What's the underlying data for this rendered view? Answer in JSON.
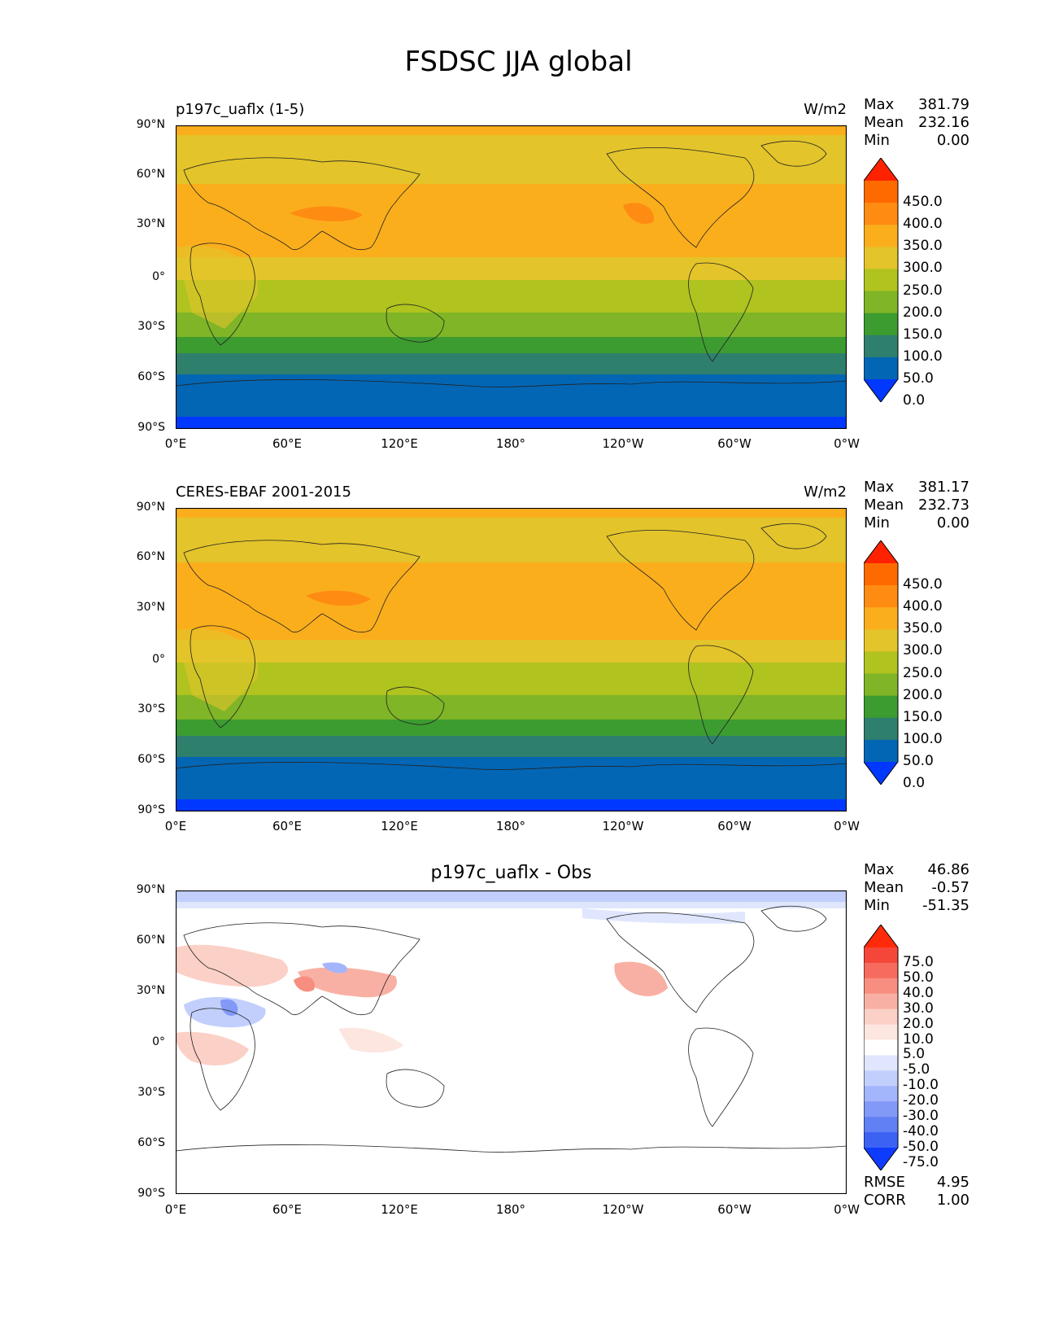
{
  "title": "FSDSC JJA global",
  "x_ticks": [
    "0°E",
    "60°E",
    "120°E",
    "180°",
    "120°W",
    "60°W",
    "0°W"
  ],
  "y_ticks": [
    "90°N",
    "60°N",
    "30°N",
    "0°",
    "30°S",
    "60°S",
    "90°S"
  ],
  "panels": [
    {
      "left_title": "p197c_uaflx (1-5)",
      "units": "W/m2",
      "stats": {
        "max_label": "Max",
        "max": "381.79",
        "mean_label": "Mean",
        "mean": "232.16",
        "min_label": "Min",
        "min": "0.00"
      },
      "colorbar_labels": [
        "450.0",
        "400.0",
        "350.0",
        "300.0",
        "250.0",
        "200.0",
        "150.0",
        "100.0",
        "50.0",
        "0.0"
      ],
      "colorbar_colors": [
        "#ff2200",
        "#ff6a00",
        "#ff8c12",
        "#fbae1c",
        "#e3c42a",
        "#b0c31f",
        "#7fb526",
        "#3c9c30",
        "#2f7f6d",
        "#0366b4",
        "#0038ff"
      ]
    },
    {
      "left_title": "CERES-EBAF 2001-2015",
      "units": "W/m2",
      "stats": {
        "max_label": "Max",
        "max": "381.17",
        "mean_label": "Mean",
        "mean": "232.73",
        "min_label": "Min",
        "min": "0.00"
      },
      "colorbar_labels": [
        "450.0",
        "400.0",
        "350.0",
        "300.0",
        "250.0",
        "200.0",
        "150.0",
        "100.0",
        "50.0",
        "0.0"
      ],
      "colorbar_colors": [
        "#ff2200",
        "#ff6a00",
        "#ff8c12",
        "#fbae1c",
        "#e3c42a",
        "#b0c31f",
        "#7fb526",
        "#3c9c30",
        "#2f7f6d",
        "#0366b4",
        "#0038ff"
      ]
    },
    {
      "center_title": "p197c_uaflx - Obs",
      "stats": {
        "max_label": "Max",
        "max": "46.86",
        "mean_label": "Mean",
        "mean": "-0.57",
        "min_label": "Min",
        "min": "-51.35"
      },
      "colorbar_labels": [
        "75.0",
        "50.0",
        "40.0",
        "30.0",
        "20.0",
        "10.0",
        "5.0",
        "-5.0",
        "-10.0",
        "-20.0",
        "-30.0",
        "-40.0",
        "-50.0",
        "-75.0"
      ],
      "colorbar_colors": [
        "#ff2a0a",
        "#f5463a",
        "#f66b5e",
        "#f78e80",
        "#f9b0a4",
        "#fbd0c6",
        "#fde6e0",
        "#ffffff",
        "#dfe6fd",
        "#c2cffd",
        "#a3b5fb",
        "#8299f7",
        "#6080f4",
        "#3c62f4",
        "#0f3bfe"
      ],
      "rmse_label": "RMSE",
      "rmse": "4.95",
      "corr_label": "CORR",
      "corr": "1.00"
    }
  ]
}
